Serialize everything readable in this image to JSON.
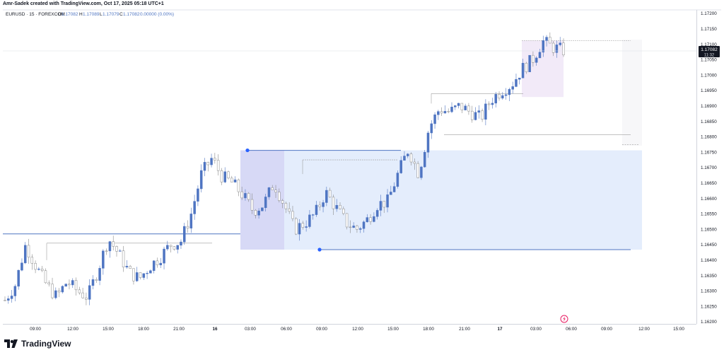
{
  "header": {
    "author_line": "Amr-Sadek created with TradingView.com, Oct 17, 2025 05:18 UTC+1",
    "symbol": "EURUSD · 15 · FOREXCOM",
    "ohlc": {
      "o_label": "O",
      "o": "1.17082",
      "h_label": "H",
      "h": "1.17089",
      "l_label": "L",
      "l": "1.17079",
      "c_label": "C",
      "c": "1.17082",
      "change": "0.00000 (0.00%)"
    }
  },
  "price_tag": {
    "price": "1.17082",
    "countdown": "11:32"
  },
  "brand": {
    "name": "TradingView",
    "logo_icon": "tradingview-logo-icon"
  },
  "event_icon": "lightning-icon",
  "colors": {
    "up": "#4f75c2",
    "down": "#bdbdbd",
    "zone": "#dbe7fb",
    "accent": "#2962ff"
  },
  "chart_data": {
    "type": "candlestick",
    "symbol": "EURUSD",
    "timeframe": "15",
    "ylim": [
      1.162,
      1.172
    ],
    "y_ticks": [
      "1.17200",
      "1.17150",
      "1.17100",
      "1.17050",
      "1.17000",
      "1.16950",
      "1.16900",
      "1.16850",
      "1.16800",
      "1.16750",
      "1.16700",
      "1.16650",
      "1.16600",
      "1.16550",
      "1.16500",
      "1.16450",
      "1.16400",
      "1.16350",
      "1.16300",
      "1.16250",
      "1.16200"
    ],
    "x_ticks": [
      "09:00",
      "12:00",
      "15:00",
      "18:00",
      "21:00",
      "16",
      "03:00",
      "06:00",
      "09:00",
      "12:00",
      "15:00",
      "18:00",
      "21:00",
      "17",
      "03:00",
      "06:00",
      "09:00",
      "12:00",
      "15:00"
    ],
    "close_path": [
      [
        0,
        1.1627
      ],
      [
        3,
        1.1632
      ],
      [
        6,
        1.1645
      ],
      [
        9,
        1.1638
      ],
      [
        12,
        1.1632
      ],
      [
        15,
        1.1628
      ],
      [
        18,
        1.1633
      ],
      [
        21,
        1.163
      ],
      [
        24,
        1.1628
      ],
      [
        27,
        1.1637
      ],
      [
        30,
        1.1647
      ],
      [
        33,
        1.1642
      ],
      [
        36,
        1.1636
      ],
      [
        39,
        1.1634
      ],
      [
        42,
        1.1638
      ],
      [
        45,
        1.1641
      ],
      [
        48,
        1.1645
      ],
      [
        51,
        1.1646
      ],
      [
        54,
        1.1655
      ],
      [
        57,
        1.1668
      ],
      [
        60,
        1.1673
      ],
      [
        63,
        1.1667
      ],
      [
        66,
        1.1665
      ],
      [
        69,
        1.1661
      ],
      [
        72,
        1.1656
      ],
      [
        75,
        1.1658
      ],
      [
        78,
        1.1665
      ],
      [
        81,
        1.1658
      ],
      [
        84,
        1.165
      ],
      [
        87,
        1.1652
      ],
      [
        90,
        1.1655
      ],
      [
        93,
        1.1662
      ],
      [
        96,
        1.1657
      ],
      [
        99,
        1.1652
      ],
      [
        102,
        1.165
      ],
      [
        105,
        1.1653
      ],
      [
        108,
        1.1658
      ],
      [
        111,
        1.1659
      ],
      [
        114,
        1.1668
      ],
      [
        117,
        1.1676
      ],
      [
        120,
        1.1668
      ],
      [
        123,
        1.1683
      ],
      [
        126,
        1.1689
      ],
      [
        129,
        1.1688
      ],
      [
        132,
        1.169
      ],
      [
        135,
        1.1688
      ],
      [
        138,
        1.1686
      ],
      [
        141,
        1.1692
      ],
      [
        144,
        1.1695
      ],
      [
        147,
        1.1697
      ],
      [
        150,
        1.1702
      ],
      [
        153,
        1.1705
      ],
      [
        156,
        1.1711
      ],
      [
        159,
        1.1709
      ],
      [
        162,
        1.1708
      ]
    ],
    "zones": [
      {
        "name": "demand-zone",
        "price_top": 1.16756,
        "price_bottom": 1.16434
      },
      {
        "name": "upper-range-box",
        "price_top": 1.17112,
        "price_bottom": 1.16929
      }
    ],
    "levels": [
      {
        "name": "left-support",
        "price": 1.16485
      },
      {
        "name": "top-left-shelf",
        "price": 1.16455
      },
      {
        "name": "mid-shelf",
        "price": 1.16725
      },
      {
        "name": "upper-shelf",
        "price": 1.1694
      },
      {
        "name": "right-shelf",
        "price": 1.16807
      }
    ],
    "markers": [
      {
        "name": "swing-high-marker",
        "price": 1.16756
      },
      {
        "name": "swing-low-marker",
        "price": 1.16434
      }
    ]
  }
}
